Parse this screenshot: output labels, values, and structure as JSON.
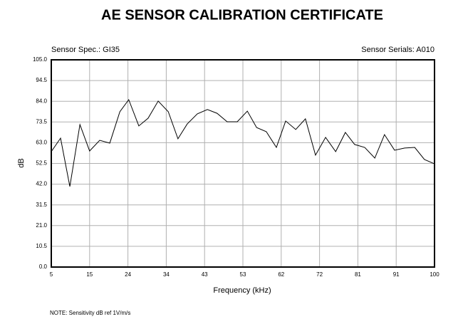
{
  "chart_data": {
    "type": "line",
    "title": "AE SENSOR CALIBRATION CERTIFICATE",
    "subtitle_left": "Sensor Spec.: GI35",
    "subtitle_right": "Sensor Serials: A010",
    "xlabel": "Frequency (kHz)",
    "ylabel": "dB",
    "note": "NOTE:  Sensitivity dB ref 1V/m/s",
    "color": "#000000",
    "grid": true,
    "x": [
      5,
      7.3,
      9.6,
      12.1,
      14.5,
      17.0,
      19.5,
      22.0,
      24.2,
      26.7,
      29.0,
      31.5,
      34.0,
      36.4,
      38.7,
      41.2,
      43.7,
      46.1,
      48.6,
      51.1,
      53.6,
      55.9,
      58.3,
      60.8,
      63.1,
      65.6,
      68.0,
      70.5,
      73.0,
      75.5,
      77.9,
      80.2,
      82.7,
      85.2,
      87.6,
      90.1,
      92.6,
      95.1,
      97.5,
      100
    ],
    "values": [
      58.5,
      65.3,
      40.8,
      72.2,
      58.8,
      64.2,
      62.8,
      78.7,
      84.8,
      71.5,
      75.4,
      84.1,
      78.7,
      65.0,
      72.5,
      77.6,
      79.8,
      77.9,
      73.6,
      73.6,
      79.0,
      70.7,
      68.6,
      60.6,
      74.0,
      69.7,
      75.1,
      56.7,
      65.7,
      58.5,
      68.2,
      62.1,
      60.6,
      55.2,
      67.1,
      59.2,
      60.3,
      60.6,
      54.5,
      52.3
    ],
    "xlim": [
      5,
      100
    ],
    "xticks": [
      5,
      {
        "value": 14.5,
        "label": "15"
      },
      24,
      {
        "value": 33.5,
        "label": "34"
      },
      43,
      {
        "value": 52.5,
        "label": "53"
      },
      62,
      {
        "value": 71.5,
        "label": "72"
      },
      81,
      {
        "value": 90.5,
        "label": "91"
      },
      100
    ],
    "ylim": [
      0,
      105
    ],
    "yticks": [
      {
        "value": 0,
        "label": "0.0"
      },
      10.5,
      {
        "value": 21,
        "label": "21.0"
      },
      31.5,
      {
        "value": 42,
        "label": "42.0"
      },
      52.5,
      {
        "value": 63,
        "label": "63.0"
      },
      73.5,
      {
        "value": 84,
        "label": "84.0"
      },
      94.5,
      {
        "value": 105,
        "label": "105.0"
      }
    ]
  }
}
